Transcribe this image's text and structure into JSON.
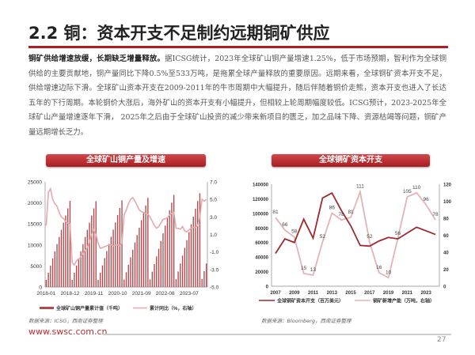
{
  "title": "2.2 铜：资本开支不足制约远期铜矿供应",
  "body": {
    "lead": "铜矿供给增速放缓，长期缺乏增量释放。",
    "text": "据ICSG统计，2023年全球矿山铜产量增速1.25%，低于市场预期，智利作为全球铜供给的主要贡献地，铜产量同比下降0.5%至533万吨，是拖累全球产量释放的重要原因。远期来看，全球铜矿资本开支不足，供给增速边际下滑。全球矿山资本开支在2009-2011年的牛市周期中大幅提升，随后伴随着铜价走熊，资本开支也进入了长达五年的下行周期。本轮铜价大涨后，海外矿山的资本开支有小幅提升，但相较上轮周期幅度较低。ICSG预计，2023-2025年全球矿山产量增速逐年下滑， 2025年之后由于全球矿山投资的减少带来新项目的匮乏，加之品味下降、资源枯竭等问题，铜矿产量远期增长乏力。"
  },
  "chart_data": [
    {
      "type": "bar+line",
      "title": "全球矿山铜产量及增速",
      "x_tick_labels": [
        "2018-01",
        "2018-12",
        "2019-11",
        "2020-10",
        "2021-09",
        "2022-08",
        "2023-07"
      ],
      "start_month": "2018-01",
      "ylim_left": [
        0,
        25000
      ],
      "yticks_left": [
        0,
        5000,
        10000,
        15000,
        20000,
        25000
      ],
      "ylim_right": [
        -5.0,
        7.0
      ],
      "yticks_right": [
        "-5.0",
        "-3.0",
        "-1.0",
        "1.0",
        "3.0",
        "5.0",
        "7.0"
      ],
      "series": [
        {
          "name": "全球矿山铜产量累计值（千吨）",
          "type": "bar",
          "color": "#b5484c",
          "values": [
            1700,
            3400,
            5100,
            6800,
            8500,
            10200,
            11900,
            13600,
            15300,
            17000,
            18700,
            20500,
            1700,
            3400,
            5100,
            6800,
            8500,
            10200,
            11900,
            13600,
            15300,
            17000,
            18700,
            20400,
            1700,
            3400,
            5150,
            6850,
            8550,
            10250,
            11950,
            13650,
            15350,
            17100,
            18800,
            20600,
            1750,
            3500,
            5300,
            7050,
            8850,
            10600,
            12350,
            14100,
            15900,
            17650,
            19400,
            21200,
            1800,
            3650,
            5450,
            7300,
            9100,
            10950,
            12750,
            14600,
            16400,
            18250,
            20050,
            21900,
            1850,
            3700,
            5600,
            7450,
            9300,
            11150,
            13050,
            14900,
            16750,
            18600,
            20450,
            22300,
            1900,
            3750,
            5600
          ]
        },
        {
          "name": "累计同比（%，右轴）",
          "type": "line",
          "color": "#e3a9ab",
          "values": [
            2.0,
            5.8,
            6.2,
            5.0,
            4.5,
            4.2,
            3.5,
            3.0,
            2.8,
            2.5,
            2.3,
            2.2,
            -2.2,
            -2.5,
            -2.0,
            -1.8,
            -1.6,
            -1.2,
            -0.8,
            -0.5,
            0.2,
            1.0,
            1.5,
            1.0,
            0.0,
            -0.6,
            -0.5,
            -0.4,
            -0.3,
            -0.2,
            -0.2,
            -0.3,
            -0.2,
            -0.2,
            -0.3,
            0.0,
            3.2,
            3.8,
            4.5,
            5.0,
            5.2,
            4.8,
            4.3,
            3.8,
            3.6,
            3.5,
            3.4,
            3.3,
            3.0,
            2.5,
            2.0,
            1.7,
            1.9,
            2.3,
            2.7,
            2.8,
            2.9,
            3.2,
            3.4,
            3.5,
            1.7,
            1.7,
            1.6,
            1.9,
            1.4,
            1.3,
            1.5,
            1.7,
            1.8,
            1.8,
            2.0,
            3.0,
            5.0,
            4.8,
            5.0
          ]
        }
      ],
      "legend_position": "bottom",
      "source": "数据来源：ICSG，西南证券整理"
    },
    {
      "type": "line",
      "title": "全球铜矿资本开支",
      "x": [
        2007,
        2008,
        2009,
        2010,
        2011,
        2012,
        2013,
        2014,
        2015,
        2016,
        2017,
        2018,
        2019,
        2020,
        2021,
        2022,
        2023,
        2024
      ],
      "x_tick_labels": [
        "2007",
        "2009",
        "2011",
        "2013",
        "2015",
        "2017",
        "2019",
        "2021",
        "2023"
      ],
      "ylim_left": [
        0,
        140000
      ],
      "yticks_left": [
        0,
        20000,
        40000,
        60000,
        80000,
        100000,
        120000,
        140000
      ],
      "ylim_right": [
        0,
        120
      ],
      "yticks_right": [
        0,
        20,
        40,
        60,
        80,
        100,
        120
      ],
      "series": [
        {
          "name": "全球铜矿资本开支（百万美元）",
          "axis": "left",
          "color": "#9e2a2f",
          "values": [
            45000,
            65000,
            60000,
            92000,
            66000,
            121000,
            128000,
            104000,
            83000,
            56000,
            55000,
            62000,
            67000,
            65000,
            73000,
            81000,
            76000,
            71000
          ]
        },
        {
          "name": "铜矿新增产能（万吨，右轴）",
          "axis": "right",
          "color": "#e3b4b6",
          "data_labels": true,
          "values": [
            81,
            66,
            58,
            15,
            13,
            52,
            86,
            78,
            81,
            111,
            52,
            16,
            10,
            56,
            105,
            110,
            96,
            78
          ]
        }
      ],
      "legend_position": "bottom",
      "source": "数据来源：Bloomberg，西南证券整理"
    }
  ],
  "footer": {
    "url": "www.swsc.com.cn",
    "page": "27"
  }
}
